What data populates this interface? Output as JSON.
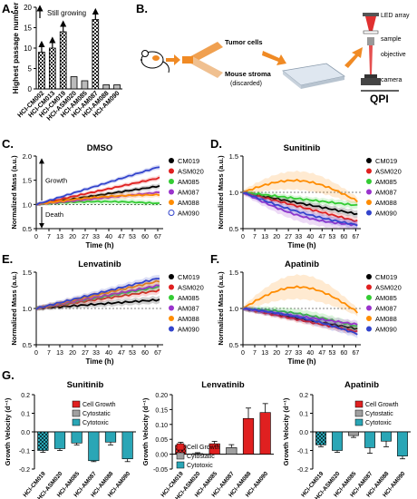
{
  "panels": {
    "A": "A.",
    "B": "B.",
    "C": "C.",
    "D": "D.",
    "E": "E.",
    "F": "F.",
    "G": "G."
  },
  "colors": {
    "CM019": "#000000",
    "ASM020": "#e02020",
    "AM085": "#33cc33",
    "AM087": "#9a33cc",
    "AM088": "#ff8c00",
    "AM090": "#3344cc",
    "growth": "#e02020",
    "cytostatic": "#a0a0a0",
    "cytotoxic": "#2aa6b6"
  },
  "schematic": {
    "tumor_cells": "Tumor cells",
    "mouse_stroma": "Mouse stroma",
    "discarded": "(discarded)",
    "led_array": "LED array",
    "sample": "sample",
    "objective": "objective",
    "camera": "camera",
    "qpi": "QPI"
  },
  "series_labels": [
    "CM019",
    "ASM020",
    "AM085",
    "AM087",
    "AM088",
    "AM090"
  ],
  "chart_data": [
    {
      "id": "A",
      "type": "bar",
      "ylabel": "Highest passage number",
      "annotation": "Still growing",
      "categories": [
        "HCI-CM002",
        "HCI-CM013",
        "HCI-CM019",
        "HCI-ASM020",
        "HCI-AM085",
        "HCI-AM087",
        "HCI-AM088",
        "HCI-AM090"
      ],
      "values": [
        9,
        10,
        14,
        3,
        2,
        17,
        1,
        1
      ],
      "still_growing": [
        true,
        true,
        true,
        false,
        false,
        true,
        false,
        false
      ],
      "ylim": [
        0,
        20
      ],
      "yticks": [
        "0",
        "5",
        "10",
        "15",
        "20"
      ]
    },
    {
      "id": "C",
      "type": "line",
      "title": "DMSO",
      "xlabel": "Time (h)",
      "ylabel": "Normalized Mass (a.u.)",
      "xlim": [
        0,
        70
      ],
      "ylim": [
        0.5,
        2.0
      ],
      "xticks": [
        "0",
        "7",
        "13",
        "20",
        "27",
        "33",
        "40",
        "47",
        "53",
        "60",
        "67"
      ],
      "yticks": [
        "0.5",
        "1.0",
        "1.5",
        "2.0"
      ],
      "arrow_up": "Growth",
      "arrow_down": "Death",
      "series": [
        {
          "key": "CM019",
          "end": 1.38,
          "mid": 0
        },
        {
          "key": "ASM020",
          "end": 1.55,
          "mid": 0
        },
        {
          "key": "AM085",
          "end": 1.02,
          "mid": 0.05
        },
        {
          "key": "AM087",
          "end": 1.25,
          "mid": 0
        },
        {
          "key": "AM088",
          "end": 1.2,
          "mid": 0.05
        },
        {
          "key": "AM090",
          "end": 1.78,
          "mid": 0
        }
      ]
    },
    {
      "id": "D",
      "type": "line",
      "title": "Sunitinib",
      "xlabel": "Time (h)",
      "ylabel": "Normalized Mass (a.u.)",
      "xlim": [
        0,
        70
      ],
      "ylim": [
        0.5,
        1.5
      ],
      "xticks": [
        "0",
        "7",
        "13",
        "20",
        "27",
        "33",
        "40",
        "47",
        "53",
        "60",
        "67"
      ],
      "yticks": [
        "0.5",
        "1.0",
        "1.5"
      ],
      "series": [
        {
          "key": "CM019",
          "end": 0.7,
          "mid": 0
        },
        {
          "key": "ASM020",
          "end": 0.6,
          "mid": 0
        },
        {
          "key": "AM085",
          "end": 0.82,
          "mid": 0
        },
        {
          "key": "AM087",
          "end": 0.55,
          "mid": -0.1
        },
        {
          "key": "AM088",
          "end": 0.88,
          "mid": 0.22
        },
        {
          "key": "AM090",
          "end": 0.55,
          "mid": -0.05
        }
      ]
    },
    {
      "id": "E",
      "type": "line",
      "title": "Lenvatinib",
      "xlabel": "Time (h)",
      "ylabel": "Normalized Mass (a.u.)",
      "xlim": [
        0,
        70
      ],
      "ylim": [
        0.5,
        1.5
      ],
      "xticks": [
        "0",
        "7",
        "13",
        "20",
        "27",
        "33",
        "40",
        "47",
        "53",
        "60",
        "67"
      ],
      "yticks": [
        "0.5",
        "1.0",
        "1.5"
      ],
      "series": [
        {
          "key": "CM019",
          "end": 1.12,
          "mid": 0
        },
        {
          "key": "ASM020",
          "end": 1.25,
          "mid": 0
        },
        {
          "key": "AM085",
          "end": 1.3,
          "mid": 0
        },
        {
          "key": "AM087",
          "end": 1.32,
          "mid": 0
        },
        {
          "key": "AM088",
          "end": 1.38,
          "mid": 0
        },
        {
          "key": "AM090",
          "end": 1.42,
          "mid": 0
        }
      ]
    },
    {
      "id": "F",
      "type": "line",
      "title": "Apatinib",
      "xlabel": "Time (h)",
      "ylabel": "Normalized Mass (a.u.)",
      "xlim": [
        0,
        70
      ],
      "ylim": [
        0.5,
        1.5
      ],
      "xticks": [
        "0",
        "7",
        "13",
        "20",
        "27",
        "33",
        "40",
        "47",
        "53",
        "60",
        "67"
      ],
      "yticks": [
        "0.5",
        "1.0",
        "1.5"
      ],
      "series": [
        {
          "key": "CM019",
          "end": 0.72,
          "mid": 0
        },
        {
          "key": "ASM020",
          "end": 0.68,
          "mid": 0
        },
        {
          "key": "AM085",
          "end": 0.75,
          "mid": 0.05
        },
        {
          "key": "AM087",
          "end": 0.78,
          "mid": 0
        },
        {
          "key": "AM088",
          "end": 0.95,
          "mid": 0.32
        },
        {
          "key": "AM090",
          "end": 0.65,
          "mid": 0.05
        }
      ]
    },
    {
      "id": "G1",
      "type": "bar",
      "title": "Sunitinib",
      "ylabel": "Growth Velocity (d⁻¹)",
      "ylim": [
        -0.2,
        0.2
      ],
      "yticks": [
        "-0.2",
        "-0.1",
        "0.0",
        "0.1",
        "0.2"
      ],
      "legend": [
        "Cell Growth",
        "Cytostatic",
        "Cytotoxic"
      ],
      "categories": [
        "HCI-CM019",
        "HCI-ASM020",
        "HCI-AM085",
        "HCI-AM087",
        "HCI-AM088",
        "HCI-AM090"
      ],
      "values": [
        -0.1,
        -0.09,
        -0.06,
        -0.155,
        -0.055,
        -0.145
      ],
      "errors": [
        0.01,
        0.01,
        0.01,
        0.005,
        0.015,
        0.015
      ],
      "classes": [
        "cytotoxic",
        "cytotoxic",
        "cytotoxic",
        "cytotoxic",
        "cytotoxic",
        "cytotoxic"
      ],
      "hatched": [
        true,
        false,
        false,
        false,
        false,
        false
      ]
    },
    {
      "id": "G2",
      "type": "bar",
      "title": "Lenvatinib",
      "ylabel": "Growth Velocity (d⁻¹)",
      "ylim": [
        -0.05,
        0.2
      ],
      "yticks": [
        "-0.05",
        "0.00",
        "0.05",
        "0.10",
        "0.15",
        "0.20"
      ],
      "legend": [
        "Cell Growth",
        "Cytostatic",
        "Cytotoxic"
      ],
      "categories": [
        "HCI-CM019",
        "HCI-ASM020",
        "HCI-AM085",
        "HCI-AM087",
        "HCI-AM088",
        "HCI-AM090"
      ],
      "values": [
        0.03,
        0.002,
        0.035,
        0.022,
        0.12,
        0.14
      ],
      "errors": [
        0.01,
        0.003,
        0.008,
        0.01,
        0.035,
        0.03
      ],
      "classes": [
        "growth",
        "cytostatic",
        "growth",
        "cytostatic",
        "growth",
        "growth"
      ],
      "hatched": [
        true,
        false,
        false,
        false,
        false,
        false
      ]
    },
    {
      "id": "G3",
      "type": "bar",
      "title": "Apatinib",
      "ylabel": "Growth Velocity (d⁻¹)",
      "ylim": [
        -0.2,
        0.2
      ],
      "yticks": [
        "-0.2",
        "-0.1",
        "0.0",
        "0.1",
        "0.2"
      ],
      "legend": [
        "Cell Growth",
        "Cytostatic",
        "Cytotoxic"
      ],
      "categories": [
        "HCI-CM019",
        "HCI-ASM020",
        "HCI-AM085",
        "HCI-AM087",
        "HCI-AM088",
        "HCI-AM090"
      ],
      "values": [
        -0.07,
        -0.1,
        -0.02,
        -0.085,
        -0.05,
        -0.13
      ],
      "errors": [
        0.01,
        0.01,
        0.01,
        0.03,
        0.03,
        0.015
      ],
      "classes": [
        "cytotoxic",
        "cytotoxic",
        "cytostatic",
        "cytotoxic",
        "cytotoxic",
        "cytotoxic"
      ],
      "hatched": [
        true,
        false,
        false,
        false,
        false,
        false
      ]
    }
  ]
}
